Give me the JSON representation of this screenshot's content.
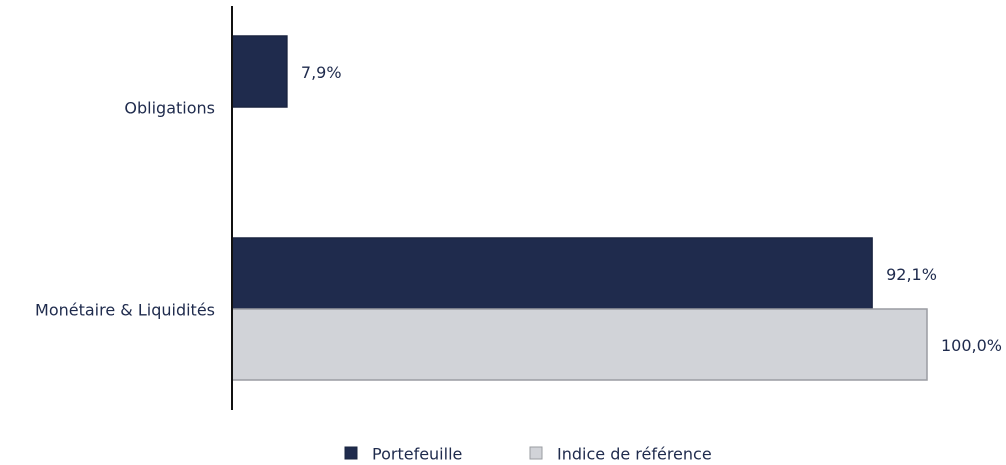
{
  "chart_data": {
    "type": "hbar",
    "categories": [
      "Obligations",
      "Monétaire & Liquidités"
    ],
    "series": [
      {
        "name": "Portefeuille",
        "color": "#1f2b4d",
        "values": [
          7.9,
          92.1
        ],
        "value_labels": [
          "7,9%",
          "92,1%"
        ]
      },
      {
        "name": "Indice de référence",
        "color": "#d1d3d8",
        "values": [
          null,
          100.0
        ],
        "value_labels": [
          null,
          "100,0%"
        ]
      }
    ],
    "xlim": [
      0,
      100
    ],
    "legend": "bottom"
  }
}
